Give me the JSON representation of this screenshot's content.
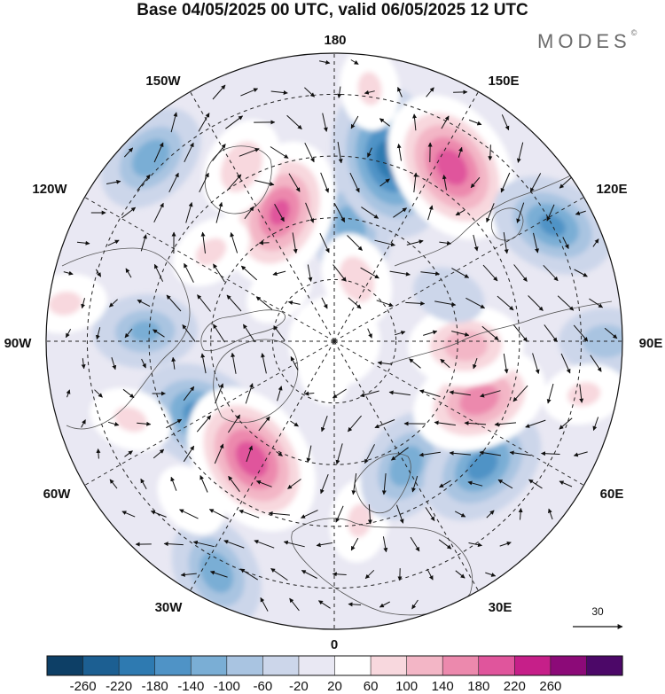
{
  "title": "Base 04/05/2025 00 UTC, valid 06/05/2025 12 UTC",
  "brand": "MODES",
  "brand_mark": "©",
  "longitude_labels": {
    "n180": "180",
    "w150": "150W",
    "e150": "150E",
    "w120": "120W",
    "e120": "120E",
    "w90": "90W",
    "e90": "90E",
    "w60": "60W",
    "e60": "60E",
    "w30": "30W",
    "e30": "30E",
    "s0": "0"
  },
  "reference_vector": {
    "label": "30",
    "arrow_icon": "reference-vector-arrow-icon"
  },
  "colorbar": {
    "ticks": [
      "-260",
      "-220",
      "-180",
      "-140",
      "-100",
      "-60",
      "-20",
      "20",
      "60",
      "100",
      "140",
      "180",
      "220",
      "260"
    ],
    "colors": [
      "#0d3f66",
      "#1c5f92",
      "#2e7ab1",
      "#4f93c6",
      "#7aaed5",
      "#a9c4e1",
      "#ccd6ea",
      "#e9e8f3",
      "#ffffff",
      "#f8d8de",
      "#f3b6c6",
      "#ec89ad",
      "#e0559c",
      "#c61f89",
      "#8c0a78",
      "#4c0868"
    ]
  },
  "anomaly_centers": [
    {
      "lon": 172,
      "lat": 62,
      "value": -120
    },
    {
      "lon": 163,
      "lat": 44,
      "value": -200
    },
    {
      "lon": 146,
      "lat": 39,
      "value": 200
    },
    {
      "lon": 118,
      "lat": 30,
      "value": -140
    },
    {
      "lon": 160,
      "lat": 74,
      "value": 80
    },
    {
      "lon": -157,
      "lat": 56,
      "value": 180
    },
    {
      "lon": -152,
      "lat": 42,
      "value": 90
    },
    {
      "lon": -126,
      "lat": 53,
      "value": 60
    },
    {
      "lon": -132,
      "lat": 72,
      "value": 40
    },
    {
      "lon": 172,
      "lat": 28,
      "value": 60
    },
    {
      "lon": -135,
      "lat": 27,
      "value": -120
    },
    {
      "lon": -93,
      "lat": 44,
      "value": -100
    },
    {
      "lon": -98,
      "lat": 24,
      "value": 60
    },
    {
      "lon": -60,
      "lat": 53,
      "value": -160
    },
    {
      "lon": -69,
      "lat": 37,
      "value": 60
    },
    {
      "lon": -35,
      "lat": 55,
      "value": 200
    },
    {
      "lon": -27,
      "lat": 27,
      "value": -120
    },
    {
      "lon": -42,
      "lat": 38,
      "value": 50
    },
    {
      "lon": 8,
      "lat": 46,
      "value": 60
    },
    {
      "lon": 30,
      "lat": 55,
      "value": -120
    },
    {
      "lon": 50,
      "lat": 43,
      "value": -150
    },
    {
      "lon": 68,
      "lat": 52,
      "value": 160
    },
    {
      "lon": 88,
      "lat": 58,
      "value": 120
    },
    {
      "lon": 90,
      "lat": 24,
      "value": -80
    },
    {
      "lon": 78,
      "lat": 28,
      "value": 60
    },
    {
      "lon": 112,
      "lat": 60,
      "value": -40
    },
    {
      "lon": -20,
      "lat": 82,
      "value": 30
    }
  ]
}
